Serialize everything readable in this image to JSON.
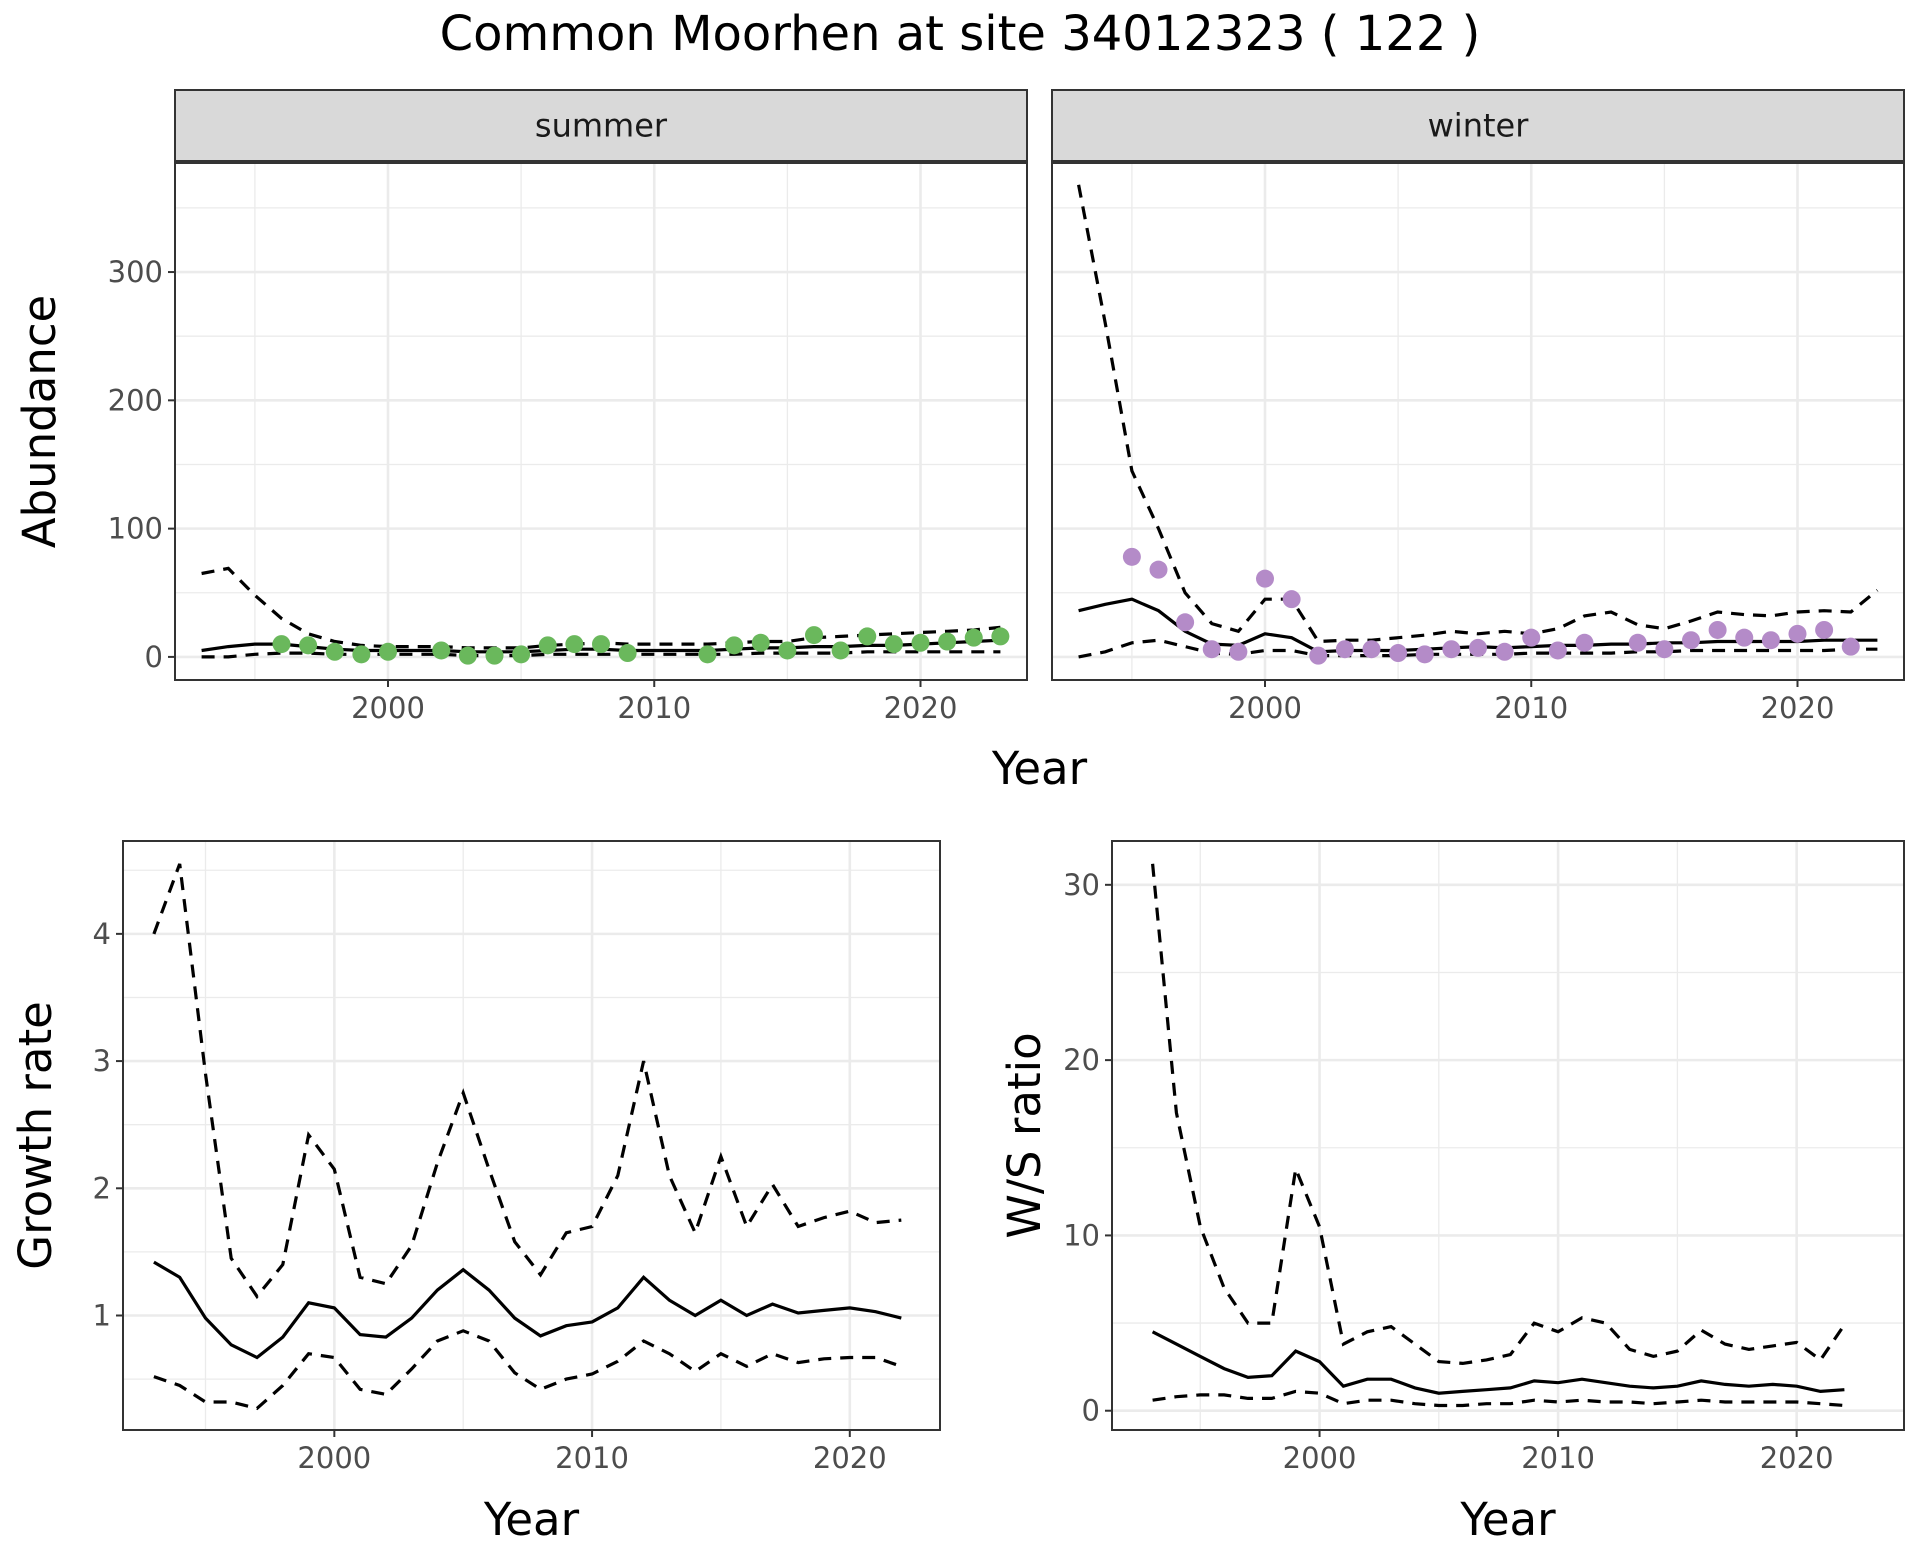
{
  "title": "Common Moorhen at site 34012323 ( 122 )",
  "colors": {
    "summer_points": "#6ab85c",
    "winter_points": "#b48bc8",
    "strip_bg": "#d9d9d9"
  },
  "chart_data": [
    {
      "id": "abundance",
      "type": "line",
      "facets": [
        "summer",
        "winter"
      ],
      "xlabel": "Year",
      "ylabel": "Abundance",
      "xlim": [
        1992,
        2024
      ],
      "ylim": [
        -18,
        385
      ],
      "xticks": [
        2000,
        2010,
        2020
      ],
      "yticks": [
        0,
        100,
        200,
        300
      ],
      "grid": true,
      "panels": [
        {
          "facet": "summer",
          "point_color": "#6ab85c",
          "points": {
            "x": [
              1996,
              1997,
              1998,
              1999,
              2000,
              2002,
              2003,
              2004,
              2005,
              2006,
              2007,
              2008,
              2009,
              2012,
              2013,
              2014,
              2015,
              2016,
              2017,
              2018,
              2019,
              2020,
              2021,
              2022,
              2023
            ],
            "y": [
              10,
              9,
              4,
              2,
              4,
              5,
              1,
              1,
              2,
              9,
              10,
              10,
              3,
              2,
              9,
              11,
              5,
              17,
              5,
              16,
              10,
              11,
              12,
              15,
              16
            ]
          },
          "mean": {
            "x": [
              1993,
              1994,
              1995,
              1996,
              1997,
              1998,
              1999,
              2000,
              2001,
              2002,
              2003,
              2004,
              2005,
              2006,
              2007,
              2008,
              2009,
              2010,
              2011,
              2012,
              2013,
              2014,
              2015,
              2016,
              2017,
              2018,
              2019,
              2020,
              2021,
              2022,
              2023
            ],
            "y": [
              5,
              8,
              10,
              10,
              8,
              6,
              5,
              5,
              5,
              5,
              4,
              4,
              4,
              5,
              6,
              6,
              5,
              5,
              5,
              5,
              6,
              7,
              7,
              8,
              8,
              9,
              9,
              10,
              11,
              12,
              13
            ]
          },
          "upper": {
            "x": [
              1993,
              1994,
              1995,
              1996,
              1997,
              1998,
              1999,
              2000,
              2001,
              2002,
              2003,
              2004,
              2005,
              2006,
              2007,
              2008,
              2009,
              2010,
              2011,
              2012,
              2013,
              2014,
              2015,
              2016,
              2017,
              2018,
              2019,
              2020,
              2021,
              2022,
              2023
            ],
            "y": [
              65,
              69,
              48,
              30,
              18,
              12,
              9,
              8,
              8,
              8,
              7,
              7,
              7,
              9,
              10,
              11,
              10,
              10,
              10,
              10,
              11,
              12,
              12,
              15,
              16,
              17,
              18,
              19,
              20,
              21,
              23
            ]
          },
          "lower": {
            "x": [
              1993,
              1994,
              1995,
              1996,
              1997,
              1998,
              1999,
              2000,
              2001,
              2002,
              2003,
              2004,
              2005,
              2006,
              2007,
              2008,
              2009,
              2010,
              2011,
              2012,
              2013,
              2014,
              2015,
              2016,
              2017,
              2018,
              2019,
              2020,
              2021,
              2022,
              2023
            ],
            "y": [
              0,
              0,
              2,
              3,
              3,
              2,
              2,
              2,
              2,
              2,
              1,
              1,
              1,
              2,
              2,
              2,
              2,
              2,
              2,
              2,
              2,
              3,
              3,
              3,
              3,
              4,
              4,
              4,
              4,
              4,
              4
            ]
          }
        },
        {
          "facet": "winter",
          "point_color": "#b48bc8",
          "points": {
            "x": [
              1995,
              1996,
              1997,
              1998,
              1999,
              2000,
              2001,
              2002,
              2003,
              2004,
              2005,
              2006,
              2007,
              2008,
              2009,
              2010,
              2011,
              2012,
              2014,
              2015,
              2016,
              2017,
              2018,
              2019,
              2020,
              2021,
              2022
            ],
            "y": [
              78,
              68,
              27,
              6,
              4,
              61,
              45,
              1,
              6,
              6,
              3,
              2,
              6,
              7,
              4,
              15,
              5,
              11,
              11,
              6,
              13,
              21,
              15,
              13,
              18,
              21,
              8
            ]
          },
          "mean": {
            "x": [
              1993,
              1994,
              1995,
              1996,
              1997,
              1998,
              1999,
              2000,
              2001,
              2002,
              2003,
              2004,
              2005,
              2006,
              2007,
              2008,
              2009,
              2010,
              2011,
              2012,
              2013,
              2014,
              2015,
              2016,
              2017,
              2018,
              2019,
              2020,
              2021,
              2022,
              2023
            ],
            "y": [
              36,
              41,
              45,
              36,
              20,
              10,
              9,
              18,
              15,
              4,
              5,
              5,
              5,
              6,
              7,
              8,
              7,
              8,
              9,
              9,
              10,
              10,
              11,
              11,
              12,
              12,
              12,
              12,
              13,
              13,
              13
            ]
          },
          "upper": {
            "x": [
              1993,
              1994,
              1995,
              1996,
              1997,
              1998,
              1999,
              2000,
              2001,
              2002,
              2003,
              2004,
              2005,
              2006,
              2007,
              2008,
              2009,
              2010,
              2011,
              2012,
              2013,
              2014,
              2015,
              2016,
              2017,
              2018,
              2019,
              2020,
              2021,
              2022,
              2023
            ],
            "y": [
              368,
              260,
              145,
              100,
              50,
              26,
              20,
              45,
              45,
              12,
              13,
              13,
              15,
              17,
              20,
              18,
              20,
              18,
              22,
              32,
              35,
              25,
              22,
              28,
              35,
              33,
              32,
              35,
              36,
              35,
              52
            ]
          },
          "lower": {
            "x": [
              1993,
              1994,
              1995,
              1996,
              1997,
              1998,
              1999,
              2000,
              2001,
              2002,
              2003,
              2004,
              2005,
              2006,
              2007,
              2008,
              2009,
              2010,
              2011,
              2012,
              2013,
              2014,
              2015,
              2016,
              2017,
              2018,
              2019,
              2020,
              2021,
              2022,
              2023
            ],
            "y": [
              0,
              4,
              11,
              13,
              8,
              3,
              2,
              5,
              5,
              1,
              1,
              1,
              1,
              2,
              2,
              2,
              2,
              3,
              3,
              3,
              3,
              4,
              4,
              5,
              5,
              5,
              5,
              5,
              5,
              6,
              6
            ]
          }
        }
      ]
    },
    {
      "id": "growth",
      "type": "line",
      "xlabel": "Year",
      "ylabel": "Growth rate",
      "xlim": [
        1991.8,
        2023.5
      ],
      "ylim": [
        0.1,
        4.73
      ],
      "xticks": [
        2000,
        2010,
        2020
      ],
      "yticks": [
        1,
        2,
        3,
        4
      ],
      "grid": true,
      "mean": {
        "x": [
          1993,
          1994,
          1995,
          1996,
          1997,
          1998,
          1999,
          2000,
          2001,
          2002,
          2003,
          2004,
          2005,
          2006,
          2007,
          2008,
          2009,
          2010,
          2011,
          2012,
          2013,
          2014,
          2015,
          2016,
          2017,
          2018,
          2019,
          2020,
          2021,
          2022
        ],
        "y": [
          1.42,
          1.3,
          0.98,
          0.77,
          0.67,
          0.83,
          1.1,
          1.06,
          0.85,
          0.83,
          0.98,
          1.2,
          1.36,
          1.2,
          0.98,
          0.84,
          0.92,
          0.95,
          1.06,
          1.3,
          1.12,
          1.0,
          1.12,
          1.0,
          1.09,
          1.02,
          1.04,
          1.06,
          1.03,
          0.98
        ]
      },
      "upper": {
        "x": [
          1993,
          1994,
          1995,
          1996,
          1997,
          1998,
          1999,
          2000,
          2001,
          2002,
          2003,
          2004,
          2005,
          2006,
          2007,
          2008,
          2009,
          2010,
          2011,
          2012,
          2013,
          2014,
          2015,
          2016,
          2017,
          2018,
          2019,
          2020,
          2021,
          2022
        ],
        "y": [
          4.0,
          4.55,
          2.9,
          1.45,
          1.15,
          1.4,
          2.42,
          2.15,
          1.3,
          1.25,
          1.55,
          2.2,
          2.75,
          2.15,
          1.58,
          1.32,
          1.65,
          1.7,
          2.1,
          3.0,
          2.1,
          1.65,
          2.25,
          1.7,
          2.03,
          1.7,
          1.77,
          1.82,
          1.73,
          1.75
        ]
      },
      "lower": {
        "x": [
          1993,
          1994,
          1995,
          1996,
          1997,
          1998,
          1999,
          2000,
          2001,
          2002,
          2003,
          2004,
          2005,
          2006,
          2007,
          2008,
          2009,
          2010,
          2011,
          2012,
          2013,
          2014,
          2015,
          2016,
          2017,
          2018,
          2019,
          2020,
          2021,
          2022
        ],
        "y": [
          0.52,
          0.45,
          0.32,
          0.32,
          0.27,
          0.45,
          0.7,
          0.67,
          0.42,
          0.38,
          0.58,
          0.8,
          0.88,
          0.8,
          0.55,
          0.42,
          0.5,
          0.54,
          0.64,
          0.8,
          0.7,
          0.56,
          0.7,
          0.6,
          0.7,
          0.63,
          0.66,
          0.67,
          0.67,
          0.6
        ]
      }
    },
    {
      "id": "ws_ratio",
      "type": "line",
      "xlabel": "Year",
      "ylabel": "W/S ratio",
      "xlim": [
        1991.3,
        2024.5
      ],
      "ylim": [
        -1.1,
        32.5
      ],
      "xticks": [
        2000,
        2010,
        2020
      ],
      "yticks": [
        0,
        10,
        20,
        30
      ],
      "grid": true,
      "mean": {
        "x": [
          1993,
          1994,
          1995,
          1996,
          1997,
          1998,
          1999,
          2000,
          2001,
          2002,
          2003,
          2004,
          2005,
          2006,
          2007,
          2008,
          2009,
          2010,
          2011,
          2012,
          2013,
          2014,
          2015,
          2016,
          2017,
          2018,
          2019,
          2020,
          2021,
          2022
        ],
        "y": [
          4.5,
          3.8,
          3.1,
          2.4,
          1.9,
          2.0,
          3.4,
          2.8,
          1.4,
          1.8,
          1.8,
          1.3,
          1.0,
          1.1,
          1.2,
          1.3,
          1.7,
          1.6,
          1.8,
          1.6,
          1.4,
          1.3,
          1.4,
          1.7,
          1.5,
          1.4,
          1.5,
          1.4,
          1.1,
          1.2
        ]
      },
      "upper": {
        "x": [
          1993,
          1994,
          1995,
          1996,
          1997,
          1998,
          1999,
          2000,
          2001,
          2002,
          2003,
          2004,
          2005,
          2006,
          2007,
          2008,
          2009,
          2010,
          2011,
          2012,
          2013,
          2014,
          2015,
          2016,
          2017,
          2018,
          2019,
          2020,
          2021,
          2022
        ],
        "y": [
          31.2,
          17.0,
          10.5,
          7.0,
          5.0,
          5.0,
          13.8,
          10.5,
          3.8,
          4.5,
          4.8,
          3.8,
          2.8,
          2.7,
          2.9,
          3.2,
          5.0,
          4.5,
          5.3,
          5.0,
          3.5,
          3.1,
          3.4,
          4.6,
          3.8,
          3.5,
          3.7,
          3.9,
          2.9,
          4.9
        ]
      },
      "lower": {
        "x": [
          1993,
          1994,
          1995,
          1996,
          1997,
          1998,
          1999,
          2000,
          2001,
          2002,
          2003,
          2004,
          2005,
          2006,
          2007,
          2008,
          2009,
          2010,
          2011,
          2012,
          2013,
          2014,
          2015,
          2016,
          2017,
          2018,
          2019,
          2020,
          2021,
          2022
        ],
        "y": [
          0.6,
          0.8,
          0.9,
          0.9,
          0.7,
          0.7,
          1.1,
          1.0,
          0.4,
          0.6,
          0.6,
          0.4,
          0.3,
          0.3,
          0.4,
          0.4,
          0.6,
          0.5,
          0.6,
          0.5,
          0.5,
          0.4,
          0.5,
          0.6,
          0.5,
          0.5,
          0.5,
          0.5,
          0.4,
          0.3
        ]
      }
    }
  ]
}
